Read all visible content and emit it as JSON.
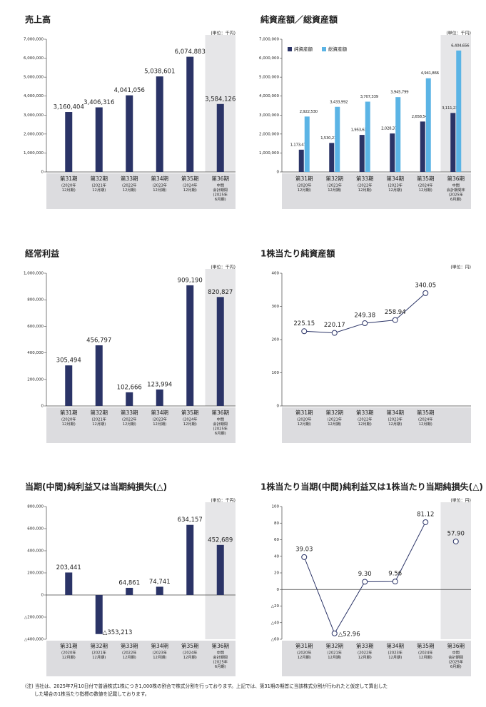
{
  "chart_data": [
    {
      "type": "bar",
      "title": "売上高",
      "unit": "(単位：千円)",
      "categories": [
        "第31期",
        "第32期",
        "第33期",
        "第34期",
        "第35期",
        "第36期"
      ],
      "category_notes": [
        [
          "(2020年",
          "12月期)"
        ],
        [
          "(2021年",
          "12月期)"
        ],
        [
          "(2022年",
          "12月期)"
        ],
        [
          "(2023年",
          "12月期)"
        ],
        [
          "(2024年",
          "12月期)"
        ],
        [
          "中間",
          "会計期間",
          "(2025年",
          "6月期)"
        ]
      ],
      "values": [
        3160404,
        3406316,
        4041056,
        5038601,
        6074883,
        3584126
      ],
      "value_labels": [
        "3,160,404",
        "3,406,316",
        "4,041,056",
        "5,038,601",
        "6,074,883",
        "3,584,126"
      ],
      "color": "#2b3467",
      "highlight_index": 5,
      "ylim": [
        0,
        7000000
      ],
      "yticks": [
        0,
        {
          "value": 1000000,
          "label": "1,000,000"
        },
        {
          "value": 2000000,
          "label": "2,000,000"
        },
        {
          "value": 3000000,
          "label": "3,000,000"
        },
        {
          "value": 4000000,
          "label": "4,000,000"
        },
        {
          "value": 5000000,
          "label": "5,000,000"
        },
        {
          "value": 6000000,
          "label": "6,000,000"
        },
        {
          "value": 7000000,
          "label": "7,000,000"
        }
      ]
    },
    {
      "type": "grouped_bar",
      "title": "純資産額／総資産額",
      "unit": "(単位：千円)",
      "categories": [
        "第31期",
        "第32期",
        "第33期",
        "第34期",
        "第35期",
        "第36期"
      ],
      "category_notes": [
        [
          "(2020年",
          "12月期)"
        ],
        [
          "(2021年",
          "12月期)"
        ],
        [
          "(2022年",
          "12月期)"
        ],
        [
          "(2023年",
          "12月期)"
        ],
        [
          "(2024年",
          "12月期)"
        ],
        [
          "中間",
          "会計期間末",
          "(2025年",
          "6月期)"
        ]
      ],
      "series": [
        {
          "name": "純資産額",
          "color": "#2b3467",
          "values": [
            1173479,
            1530214,
            1953634,
            2028376,
            2658540,
            3111230
          ],
          "value_labels": [
            "1,173,479",
            "1,530,214",
            "1,953,634",
            "2,028,376",
            "2,658,540",
            "3,111,230"
          ]
        },
        {
          "name": "総資産額",
          "color": "#5bb4e5",
          "values": [
            2922530,
            3433992,
            3707339,
            3945799,
            4941866,
            6404656
          ],
          "value_labels": [
            "2,922,530",
            "3,433,992",
            "3,707,339",
            "3,945,799",
            "4,941,866",
            "6,404,656"
          ]
        }
      ],
      "legend": "upper left",
      "highlight_index": 5,
      "ylim": [
        0,
        7000000
      ],
      "yticks": [
        0,
        {
          "value": 1000000,
          "label": "1,000,000"
        },
        {
          "value": 2000000,
          "label": "2,000,000"
        },
        {
          "value": 3000000,
          "label": "3,000,000"
        },
        {
          "value": 4000000,
          "label": "4,000,000"
        },
        {
          "value": 5000000,
          "label": "5,000,000"
        },
        {
          "value": 6000000,
          "label": "6,000,000"
        },
        {
          "value": 7000000,
          "label": "7,000,000"
        }
      ]
    },
    {
      "type": "bar",
      "title": "経常利益",
      "unit": "(単位：千円)",
      "categories": [
        "第31期",
        "第32期",
        "第33期",
        "第34期",
        "第35期",
        "第36期"
      ],
      "category_notes": [
        [
          "(2020年",
          "12月期)"
        ],
        [
          "(2021年",
          "12月期)"
        ],
        [
          "(2022年",
          "12月期)"
        ],
        [
          "(2023年",
          "12月期)"
        ],
        [
          "(2024年",
          "12月期)"
        ],
        [
          "中間",
          "会計期間",
          "(2025年",
          "6月期)"
        ]
      ],
      "values": [
        305494,
        456797,
        102666,
        123994,
        909190,
        820827
      ],
      "value_labels": [
        "305,494",
        "456,797",
        "102,666",
        "123,994",
        "909,190",
        "820,827"
      ],
      "color": "#2b3467",
      "highlight_index": 5,
      "ylim": [
        0,
        1000000
      ],
      "yticks": [
        0,
        {
          "value": 200000,
          "label": "200,000"
        },
        {
          "value": 400000,
          "label": "400,000"
        },
        {
          "value": 600000,
          "label": "600,000"
        },
        {
          "value": 800000,
          "label": "800,000"
        },
        {
          "value": 1000000,
          "label": "1,000,000"
        }
      ]
    },
    {
      "type": "line",
      "title": "1株当たり純資産額",
      "unit": "(単位：円)",
      "categories": [
        "第31期",
        "第32期",
        "第33期",
        "第34期",
        "第35期"
      ],
      "category_notes": [
        [
          "(2020年",
          "12月期)"
        ],
        [
          "(2021年",
          "12月期)"
        ],
        [
          "(2022年",
          "12月期)"
        ],
        [
          "(2023年",
          "12月期)"
        ],
        [
          "(2024年",
          "12月期)"
        ]
      ],
      "values": [
        225.15,
        220.17,
        249.38,
        258.94,
        340.05
      ],
      "color": "#2b3467",
      "ylim": [
        0,
        400
      ],
      "yticks": [
        0,
        100,
        200,
        300,
        400
      ]
    },
    {
      "type": "bar",
      "title": "当期(中間)純利益又は当期純損失(△)",
      "unit": "(単位：千円)",
      "categories": [
        "第31期",
        "第32期",
        "第33期",
        "第34期",
        "第35期",
        "第36期"
      ],
      "category_notes": [
        [
          "(2020年",
          "12月期)"
        ],
        [
          "(2021年",
          "12月期)"
        ],
        [
          "(2022年",
          "12月期)"
        ],
        [
          "(2023年",
          "12月期)"
        ],
        [
          "(2024年",
          "12月期)"
        ],
        [
          "中間",
          "会計期間",
          "(2025年",
          "6月期)"
        ]
      ],
      "values": [
        203441,
        -353213,
        64861,
        74741,
        634157,
        452689
      ],
      "value_labels": [
        "203,441",
        "△353,213",
        "64,861",
        "74,741",
        "634,157",
        "452,689"
      ],
      "color": "#2b3467",
      "highlight_index": 5,
      "ylim": [
        -400000,
        800000
      ],
      "yticks": [
        {
          "value": -400000,
          "label": "△400,000"
        },
        {
          "value": -200000,
          "label": "△200,000"
        },
        0,
        {
          "value": 200000,
          "label": "200,000"
        },
        {
          "value": 400000,
          "label": "400,000"
        },
        {
          "value": 600000,
          "label": "600,000"
        },
        {
          "value": 800000,
          "label": "800,000"
        }
      ]
    },
    {
      "type": "line",
      "title": "1株当たり当期(中間)純利益又は1株当たり当期純損失(△)",
      "unit": "(単位：円)",
      "categories": [
        "第31期",
        "第32期",
        "第33期",
        "第34期",
        "第35期",
        "第36期"
      ],
      "category_notes": [
        [
          "(2020年",
          "12月期)"
        ],
        [
          "(2021年",
          "12月期)"
        ],
        [
          "(2022年",
          "12月期)"
        ],
        [
          "(2023年",
          "12月期)"
        ],
        [
          "(2024年",
          "12月期)"
        ],
        [
          "中間",
          "会計期間",
          "(2025年",
          "6月期)"
        ]
      ],
      "values": [
        39.03,
        -52.96,
        9.3,
        9.56,
        81.12,
        57.9
      ],
      "value_labels": [
        "39.03",
        "△52.96",
        "9.30",
        "9.56",
        "81.12",
        "57.90"
      ],
      "color": "#2b3467",
      "highlight_index": 5,
      "ylim": [
        -60,
        100
      ],
      "yticks": [
        {
          "value": -60,
          "label": "△60"
        },
        {
          "value": -40,
          "label": "△40"
        },
        {
          "value": -20,
          "label": "△20"
        },
        0,
        20,
        40,
        60,
        80,
        100
      ]
    }
  ],
  "note": [
    "(注) 当社は、2025年7月10日付で普通株式1株につき1,000株の割合で株式分割を行っております。上記では、第31期の期首に当該株式分割が行われたと仮定して算出した",
    "した場合の1株当たり指標の数値を記載しております。"
  ]
}
